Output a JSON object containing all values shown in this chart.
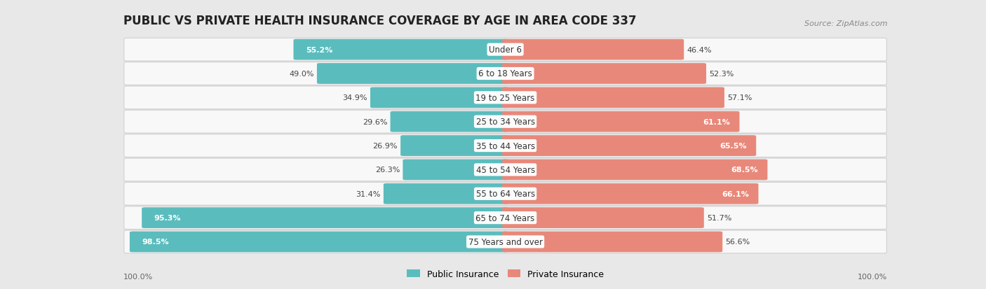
{
  "title": "PUBLIC VS PRIVATE HEALTH INSURANCE COVERAGE BY AGE IN AREA CODE 337",
  "source": "Source: ZipAtlas.com",
  "categories": [
    "Under 6",
    "6 to 18 Years",
    "19 to 25 Years",
    "25 to 34 Years",
    "35 to 44 Years",
    "45 to 54 Years",
    "55 to 64 Years",
    "65 to 74 Years",
    "75 Years and over"
  ],
  "public_values": [
    55.2,
    49.0,
    34.9,
    29.6,
    26.9,
    26.3,
    31.4,
    95.3,
    98.5
  ],
  "private_values": [
    46.4,
    52.3,
    57.1,
    61.1,
    65.5,
    68.5,
    66.1,
    51.7,
    56.6
  ],
  "public_color": "#5bbcbd",
  "private_color": "#e8887a",
  "background_color": "#e8e8e8",
  "row_bg_color": "#f8f8f8",
  "title_fontsize": 12,
  "source_fontsize": 8,
  "label_fontsize": 8.5,
  "value_fontsize": 8,
  "max_value": 100.0,
  "legend_public": "Public Insurance",
  "legend_private": "Private Insurance",
  "pub_inside_threshold": 50,
  "priv_inside_threshold": 60
}
